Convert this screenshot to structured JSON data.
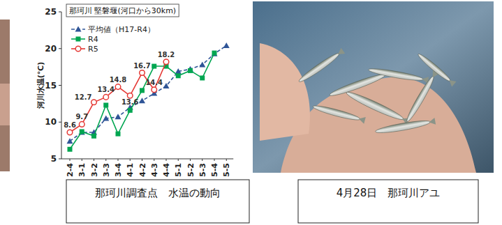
{
  "chart_data": {
    "type": "line",
    "title": "那珂川 堅磐堰(河口から30km)",
    "y_label": "河川水温(℃)",
    "categories": [
      "2-4",
      "3-1",
      "3-2",
      "3-3",
      "3-4",
      "4-1",
      "4-2",
      "4-3",
      "4-4",
      "5-1",
      "5-2",
      "5-3",
      "5-4",
      "5-5"
    ],
    "series": [
      {
        "name": "平均値（H17-R4）",
        "color": "#2f5597",
        "marker": "triangle",
        "line_style": "dashed",
        "values": [
          7.4,
          8.6,
          8.6,
          10.5,
          10.7,
          12.0,
          12.9,
          13.9,
          14.9,
          16.9,
          17.2,
          17.8,
          19.3,
          20.4
        ]
      },
      {
        "name": "R4",
        "color": "#00a651",
        "marker": "square",
        "line_style": "solid",
        "values": [
          6.3,
          8.7,
          8.1,
          12.3,
          8.4,
          11.6,
          14.3,
          17.6,
          17.6,
          16.3,
          17.0,
          16.0,
          19.4,
          null
        ]
      },
      {
        "name": "R5",
        "color": "#e53935",
        "marker": "circle",
        "line_style": "solid",
        "data_labels": true,
        "values": [
          8.6,
          9.7,
          12.7,
          13.4,
          14.8,
          13.6,
          16.7,
          14.4,
          18.2,
          null,
          null,
          null,
          null,
          null
        ]
      }
    ],
    "ylim": [
      5,
      25
    ],
    "yticks": [
      5,
      10,
      15,
      20,
      25
    ],
    "grid": false,
    "legend": "upper left"
  },
  "captions": [
    "那珂川調査点　水温の動向",
    "4月28日　那珂川アユ"
  ]
}
